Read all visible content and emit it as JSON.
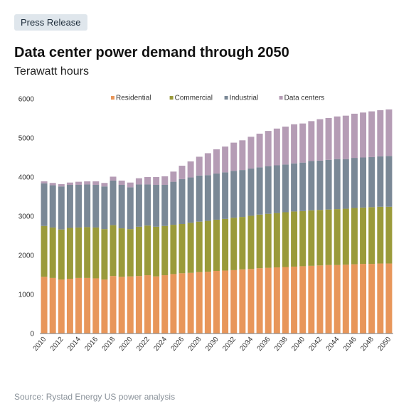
{
  "badge": "Press Release",
  "source": "Source: Rystad Energy US power analysis",
  "chart_data": {
    "type": "bar",
    "stacked": true,
    "title": "Data center power demand through 2050",
    "subtitle": "Terawatt hours",
    "ylim": [
      0,
      6000
    ],
    "y_ticks": [
      0,
      1000,
      2000,
      3000,
      4000,
      5000,
      6000
    ],
    "grid": false,
    "legend_position": "top",
    "categories": [
      2010,
      2011,
      2012,
      2013,
      2014,
      2015,
      2016,
      2017,
      2018,
      2019,
      2020,
      2021,
      2022,
      2023,
      2024,
      2025,
      2026,
      2027,
      2028,
      2029,
      2030,
      2031,
      2032,
      2033,
      2034,
      2035,
      2036,
      2037,
      2038,
      2039,
      2040,
      2041,
      2042,
      2043,
      2044,
      2045,
      2046,
      2047,
      2048,
      2049,
      2050
    ],
    "x_tick_labels": [
      "2010",
      "",
      "2012",
      "",
      "2014",
      "",
      "2016",
      "",
      "2018",
      "",
      "2020",
      "",
      "2022",
      "",
      "2024",
      "",
      "2026",
      "",
      "2028",
      "",
      "2030",
      "",
      "2032",
      "",
      "2034",
      "",
      "2036",
      "",
      "2038",
      "",
      "2040",
      "",
      "2042",
      "",
      "2044",
      "",
      "2046",
      "",
      "2048",
      "",
      "2050"
    ],
    "series": [
      {
        "name": "Residential",
        "color": "#e8965a",
        "values": [
          1450,
          1420,
          1380,
          1400,
          1420,
          1420,
          1410,
          1380,
          1470,
          1450,
          1460,
          1470,
          1490,
          1460,
          1490,
          1520,
          1540,
          1550,
          1570,
          1580,
          1600,
          1610,
          1620,
          1640,
          1650,
          1670,
          1680,
          1690,
          1700,
          1710,
          1720,
          1730,
          1740,
          1750,
          1750,
          1760,
          1770,
          1780,
          1780,
          1790,
          1790
        ]
      },
      {
        "name": "Commercial",
        "color": "#9a9a3a",
        "values": [
          1300,
          1290,
          1280,
          1300,
          1290,
          1300,
          1300,
          1290,
          1300,
          1240,
          1210,
          1260,
          1270,
          1270,
          1260,
          1260,
          1260,
          1280,
          1290,
          1300,
          1310,
          1320,
          1340,
          1340,
          1360,
          1370,
          1380,
          1390,
          1400,
          1410,
          1410,
          1420,
          1420,
          1420,
          1430,
          1430,
          1440,
          1440,
          1450,
          1450,
          1450
        ]
      },
      {
        "name": "Industrial",
        "color": "#7a8896",
        "values": [
          1090,
          1080,
          1100,
          1100,
          1090,
          1090,
          1090,
          1090,
          1140,
          1110,
          1070,
          1080,
          1050,
          1070,
          1050,
          1100,
          1150,
          1160,
          1180,
          1170,
          1180,
          1190,
          1200,
          1200,
          1210,
          1210,
          1220,
          1220,
          1220,
          1230,
          1240,
          1260,
          1260,
          1270,
          1280,
          1270,
          1280,
          1280,
          1280,
          1290,
          1300
        ]
      },
      {
        "name": "Data centers",
        "color": "#b59cb5",
        "values": [
          50,
          60,
          60,
          60,
          80,
          80,
          90,
          90,
          100,
          110,
          120,
          160,
          190,
          200,
          220,
          260,
          340,
          410,
          480,
          560,
          620,
          660,
          720,
          760,
          810,
          860,
          900,
          940,
          970,
          1000,
          1000,
          1020,
          1060,
          1070,
          1090,
          1110,
          1130,
          1150,
          1170,
          1180,
          1190
        ]
      }
    ]
  }
}
